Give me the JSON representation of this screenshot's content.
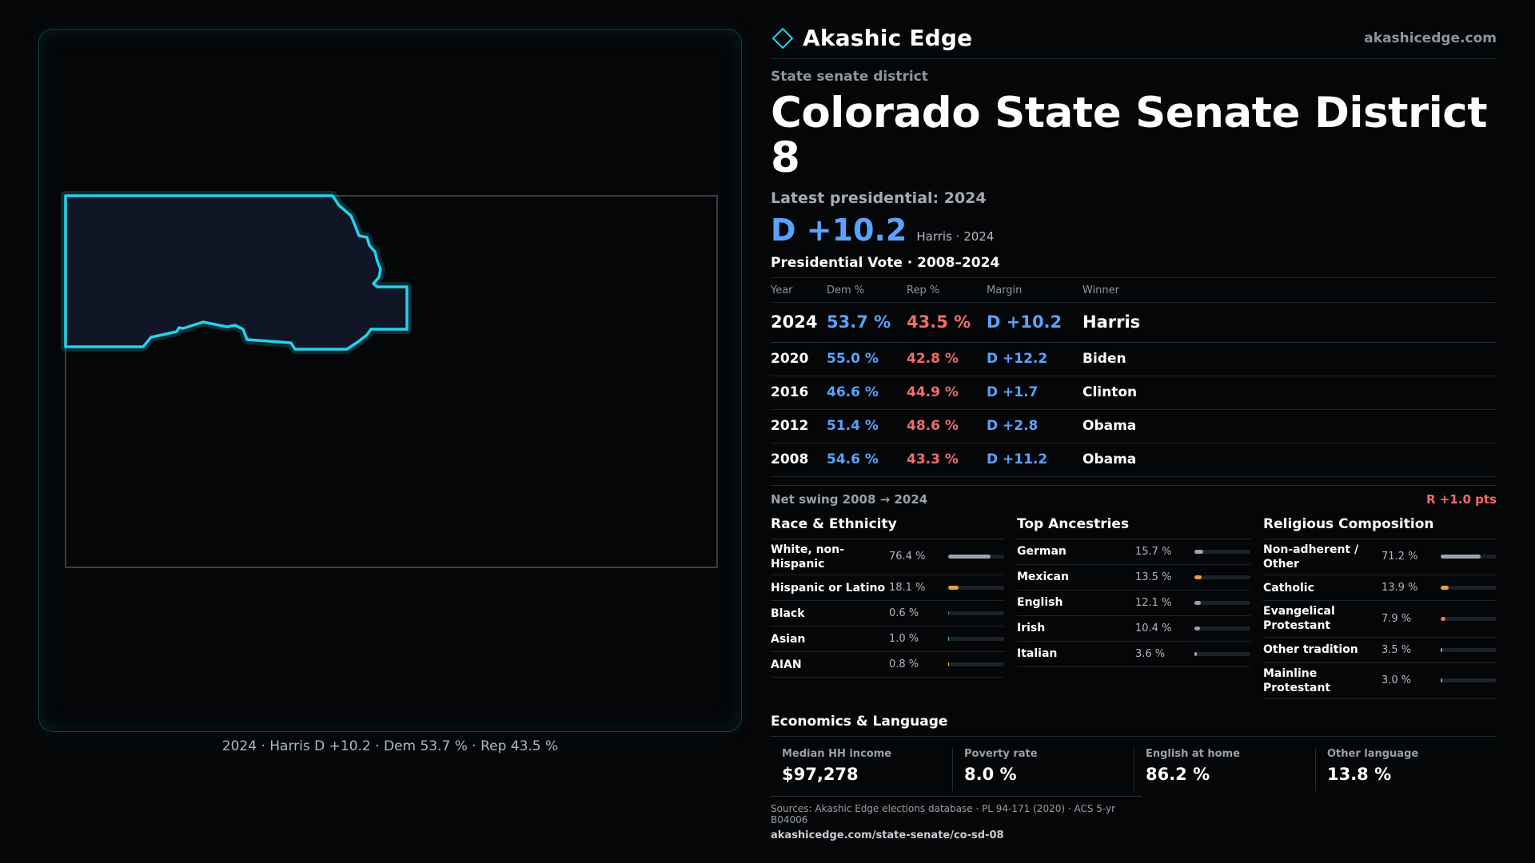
{
  "map": {
    "caption": "2024 · Harris D +10.2 · Dem 53.7 % · Rep 43.5 %",
    "outline_color": "#22d3ee",
    "fill_color": "#101626"
  },
  "header": {
    "brand_name": "Akashic Edge",
    "brand_icon": "diamond-outline-icon",
    "site": "akashicedge.com"
  },
  "district": {
    "type_label": "State senate district",
    "title": "Colorado State Senate District 8",
    "latest_label": "Latest presidential: 2024",
    "margin": "D +10.2",
    "margin_sub": "Harris · 2024"
  },
  "presidential": {
    "title": "Presidential Vote · 2008–2024",
    "columns": [
      "Year",
      "Dem %",
      "Rep %",
      "Margin",
      "Winner"
    ],
    "rows": [
      {
        "year": "2024",
        "dem": "53.7 %",
        "rep": "43.5 %",
        "margin": "D +10.2",
        "winner": "Harris"
      },
      {
        "year": "2020",
        "dem": "55.0 %",
        "rep": "42.8 %",
        "margin": "D +12.2",
        "winner": "Biden"
      },
      {
        "year": "2016",
        "dem": "46.6 %",
        "rep": "44.9 %",
        "margin": "D +1.7",
        "winner": "Clinton"
      },
      {
        "year": "2012",
        "dem": "51.4 %",
        "rep": "48.6 %",
        "margin": "D +2.8",
        "winner": "Obama"
      },
      {
        "year": "2008",
        "dem": "54.6 %",
        "rep": "43.3 %",
        "margin": "D +11.2",
        "winner": "Obama"
      }
    ],
    "swing_label": "Net swing 2008 → 2024",
    "swing_value": "R +1.0 pts"
  },
  "race": {
    "title": "Race & Ethnicity",
    "rows": [
      {
        "label": "White, non-Hispanic",
        "pct": "76.4 %",
        "value": 76.4,
        "color": "#9aa3ad"
      },
      {
        "label": "Hispanic or Latino",
        "pct": "18.1 %",
        "value": 18.1,
        "color": "#e6a23c"
      },
      {
        "label": "Black",
        "pct": "0.6 %",
        "value": 0.6,
        "color": "#6b7280"
      },
      {
        "label": "Asian",
        "pct": "1.0 %",
        "value": 1.0,
        "color": "#34d399"
      },
      {
        "label": "AIAN",
        "pct": "0.8 %",
        "value": 0.8,
        "color": "#f59e0b"
      }
    ]
  },
  "ancestry": {
    "title": "Top Ancestries",
    "rows": [
      {
        "label": "German",
        "pct": "15.7 %",
        "value": 15.7,
        "color": "#9aa3ad"
      },
      {
        "label": "Mexican",
        "pct": "13.5 %",
        "value": 13.5,
        "color": "#e6a23c"
      },
      {
        "label": "English",
        "pct": "12.1 %",
        "value": 12.1,
        "color": "#9aa3ad"
      },
      {
        "label": "Irish",
        "pct": "10.4 %",
        "value": 10.4,
        "color": "#9aa3ad"
      },
      {
        "label": "Italian",
        "pct": "3.6 %",
        "value": 3.6,
        "color": "#9aa3ad"
      }
    ]
  },
  "religion": {
    "title": "Religious Composition",
    "rows": [
      {
        "label": "Non-adherent / Other",
        "pct": "71.2 %",
        "value": 71.2,
        "color": "#9aa3ad"
      },
      {
        "label": "Catholic",
        "pct": "13.9 %",
        "value": 13.9,
        "color": "#e6a23c"
      },
      {
        "label": "Evangelical Protestant",
        "pct": "7.9 %",
        "value": 7.9,
        "color": "#f26b6b"
      },
      {
        "label": "Other tradition",
        "pct": "3.5 %",
        "value": 3.5,
        "color": "#9aa3ad"
      },
      {
        "label": "Mainline Protestant",
        "pct": "3.0 %",
        "value": 3.0,
        "color": "#5aa2ff"
      }
    ]
  },
  "economics": {
    "title": "Economics & Language",
    "cells": [
      {
        "label": "Median HH income",
        "value": "$97,278"
      },
      {
        "label": "Poverty rate",
        "value": "8.0 %"
      },
      {
        "label": "English at home",
        "value": "86.2 %"
      },
      {
        "label": "Other language",
        "value": "13.8 %"
      }
    ]
  },
  "sources": {
    "line": "Sources: Akashic Edge elections database · PL 94-171 (2020) · ACS 5-yr B04006",
    "url": "akashicedge.com/state-senate/co-sd-08"
  }
}
